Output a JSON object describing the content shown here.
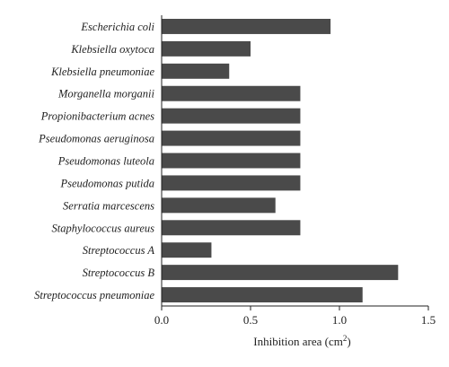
{
  "chart_data": {
    "type": "bar",
    "orientation": "horizontal",
    "categories": [
      "Escherichia coli",
      "Klebsiella oxytoca",
      "Klebsiella pneumoniae",
      "Morganella morganii",
      "Propionibacterium acnes",
      "Pseudomonas aeruginosa",
      "Pseudomonas luteola",
      "Pseudomonas putida",
      "Serratia marcescens",
      "Staphylococcus aureus",
      "Streptococcus A",
      "Streptococcus B",
      "Streptococcus pneumoniae"
    ],
    "values": [
      0.95,
      0.5,
      0.38,
      0.78,
      0.78,
      0.78,
      0.78,
      0.78,
      0.64,
      0.78,
      0.28,
      1.33,
      1.13
    ],
    "xlabel": "Inhibition area (cm",
    "xlabel_sup": "2",
    "xlabel_end": ")",
    "xlim": [
      0,
      1.5
    ],
    "xticks": [
      0,
      0.5,
      1,
      1.5
    ],
    "xtick_labels": [
      "0.0",
      "0.5",
      "1.0",
      "1.5"
    ],
    "bar_color": "#4a4a4a",
    "grid": false
  }
}
